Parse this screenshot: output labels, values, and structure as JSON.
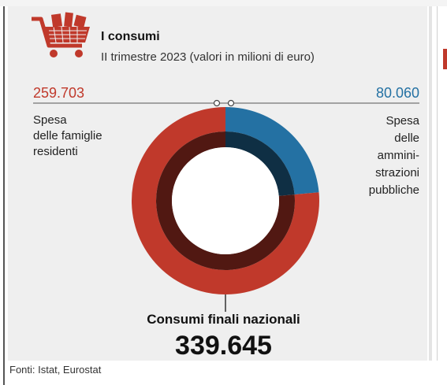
{
  "header": {
    "title": "I consumi",
    "subtitle": "II trimestre 2023 (valori in milioni di euro)"
  },
  "chart_data": {
    "type": "pie",
    "style": "donut",
    "slices": [
      {
        "label": "Spesa\ndelle famiglie\nresidenti",
        "value": 259.703,
        "value_label": "259.703",
        "color": "#c0392b"
      },
      {
        "label": "Spesa\ndelle\nammini-\nstrazioni\npubbliche",
        "value": 80.06,
        "value_label": "80.060",
        "color": "#2471a3"
      }
    ],
    "total_label": "Consumi finali nazionali",
    "total_value": "339.645"
  },
  "footer": {
    "source": "Fonti: Istat, Eurostat"
  },
  "icons": {
    "header_icon": "shopping-cart-icon"
  },
  "colors": {
    "famiglie": "#c0392b",
    "pubbliche": "#2471a3",
    "panel": "#efefef"
  }
}
